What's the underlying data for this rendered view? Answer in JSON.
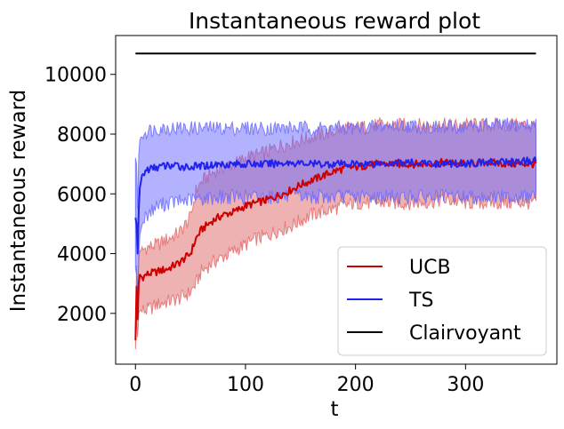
{
  "chart_data": {
    "type": "line",
    "title": "Instantaneous reward plot",
    "xlabel": "t",
    "ylabel": "Instantaneous reward",
    "xlim": [
      -18,
      383
    ],
    "ylim": [
      300,
      11300
    ],
    "xticks": [
      0,
      100,
      200,
      300
    ],
    "yticks": [
      2000,
      4000,
      6000,
      8000,
      10000
    ],
    "grid": false,
    "legend_position": "lower-right",
    "series": [
      {
        "name": "UCB",
        "color": "#cc0000",
        "band_color": "#e06666",
        "x": [
          0,
          1,
          2,
          3,
          4,
          6,
          10,
          20,
          30,
          40,
          50,
          55,
          60,
          70,
          80,
          90,
          100,
          110,
          120,
          130,
          140,
          150,
          160,
          170,
          180,
          190,
          200,
          220,
          240,
          260,
          280,
          300,
          320,
          340,
          364
        ],
        "mean": [
          1100,
          2900,
          1800,
          3000,
          3300,
          3200,
          3300,
          3400,
          3500,
          3700,
          4000,
          4500,
          4800,
          5100,
          5300,
          5400,
          5600,
          5700,
          5800,
          5950,
          6100,
          6300,
          6450,
          6600,
          6750,
          6850,
          6900,
          7000,
          7000,
          7000,
          7050,
          7000,
          7050,
          7000,
          7000
        ],
        "lower": [
          800,
          1800,
          1200,
          2000,
          2100,
          2100,
          2100,
          2300,
          2400,
          2500,
          2700,
          3000,
          3400,
          3700,
          3900,
          4100,
          4300,
          4500,
          4600,
          4800,
          4900,
          5100,
          5300,
          5400,
          5500,
          5600,
          5700,
          5700,
          5700,
          5700,
          5800,
          5700,
          5700,
          5700,
          5700
        ],
        "upper": [
          1400,
          3600,
          2600,
          3800,
          4100,
          4100,
          4200,
          4300,
          4500,
          4700,
          5200,
          6100,
          6400,
          6700,
          6900,
          7000,
          7200,
          7300,
          7400,
          7600,
          7700,
          7800,
          7900,
          8000,
          8100,
          8200,
          8200,
          8300,
          8300,
          8300,
          8300,
          8300,
          8300,
          8300,
          8300
        ]
      },
      {
        "name": "TS",
        "color": "#2222ee",
        "band_color": "#6666ff",
        "x": [
          0,
          1,
          2,
          3,
          4,
          6,
          10,
          20,
          30,
          50,
          80,
          100,
          120,
          140,
          160,
          180,
          200,
          240,
          280,
          320,
          364
        ],
        "mean": [
          5200,
          5000,
          4000,
          5500,
          6200,
          6600,
          6800,
          6900,
          6950,
          6900,
          7000,
          7000,
          7000,
          7050,
          7000,
          7000,
          7000,
          7050,
          7000,
          7050,
          7100
        ],
        "lower": [
          3500,
          3300,
          2300,
          3900,
          4600,
          5000,
          5300,
          5600,
          5700,
          5800,
          5900,
          5900,
          5900,
          5900,
          5900,
          5900,
          5900,
          5900,
          5900,
          5900,
          5900
        ],
        "upper": [
          7200,
          7000,
          5500,
          7300,
          7800,
          8000,
          8100,
          8200,
          8200,
          8200,
          8200,
          8200,
          8200,
          8200,
          8200,
          8200,
          8200,
          8300,
          8200,
          8300,
          8300
        ]
      },
      {
        "name": "Clairvoyant",
        "color": "#000000",
        "x": [
          0,
          364
        ],
        "mean": [
          10700,
          10700
        ]
      }
    ]
  }
}
